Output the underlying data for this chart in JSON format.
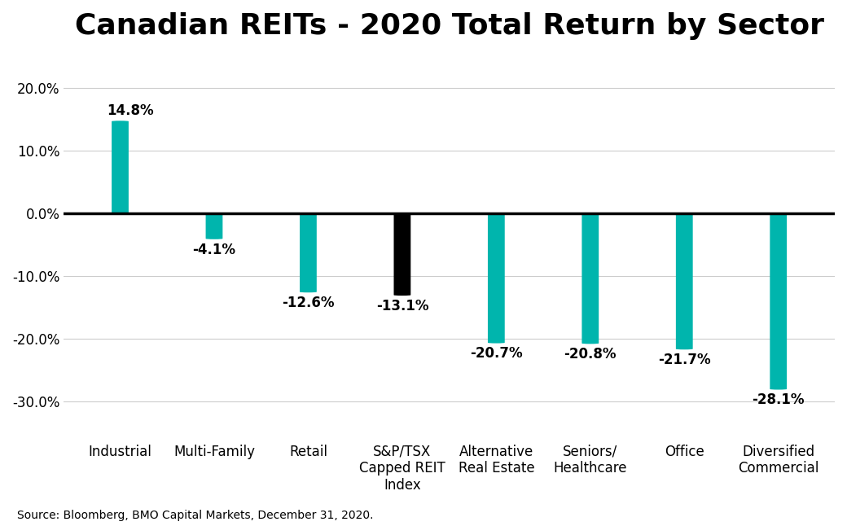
{
  "title": "Canadian REITs - 2020 Total Return by Sector",
  "categories": [
    "Industrial",
    "Multi-Family",
    "Retail",
    "S&P/TSX\nCapped REIT\nIndex",
    "Alternative\nReal Estate",
    "Seniors/\nHealthcare",
    "Office",
    "Diversified\nCommercial"
  ],
  "values": [
    14.8,
    -4.1,
    -12.6,
    -13.1,
    -20.7,
    -20.8,
    -21.7,
    -28.1
  ],
  "bar_colors": [
    "#00B5AD",
    "#00B5AD",
    "#00B5AD",
    "#000000",
    "#00B5AD",
    "#00B5AD",
    "#00B5AD",
    "#00B5AD"
  ],
  "bar_width": 0.18,
  "ylim": [
    -35,
    25
  ],
  "yticks": [
    -30,
    -20,
    -10,
    0,
    10,
    20
  ],
  "ytick_labels": [
    "-30.0%",
    "-20.0%",
    "-10.0%",
    "0.0%",
    "10.0%",
    "20.0%"
  ],
  "source_text": "Source: Bloomberg, BMO Capital Markets, December 31, 2020.",
  "background_color": "#ffffff",
  "title_fontsize": 26,
  "label_fontsize": 12,
  "tick_fontsize": 12,
  "source_fontsize": 10
}
